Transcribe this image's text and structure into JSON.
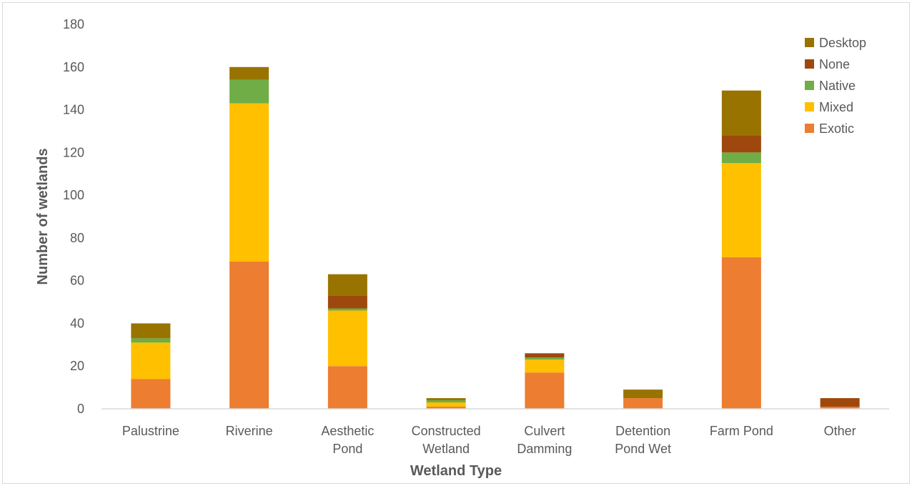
{
  "chart_data": {
    "type": "bar",
    "stacked": true,
    "title": "",
    "xlabel": "Wetland Type",
    "ylabel": "Number of wetlands",
    "ylim": [
      0,
      180
    ],
    "yticks": [
      0,
      20,
      40,
      60,
      80,
      100,
      120,
      140,
      160,
      180
    ],
    "grid": false,
    "legend": "top-right",
    "categories": [
      [
        "Palustrine"
      ],
      [
        "Riverine"
      ],
      [
        "Aesthetic",
        "Pond"
      ],
      [
        "Constructed",
        "Wetland"
      ],
      [
        "Culvert",
        "Damming"
      ],
      [
        "Detention",
        "Pond Wet"
      ],
      [
        "Farm Pond"
      ],
      [
        "Other"
      ]
    ],
    "series": [
      {
        "name": "Exotic",
        "color": "#ED7D31",
        "values": [
          14,
          69,
          20,
          1,
          17,
          5,
          71,
          1
        ]
      },
      {
        "name": "Mixed",
        "color": "#FFC000",
        "values": [
          17,
          74,
          26,
          2,
          6,
          0,
          44,
          0
        ]
      },
      {
        "name": "Native",
        "color": "#70AD47",
        "values": [
          2,
          11,
          1,
          1,
          1,
          0,
          5,
          0
        ]
      },
      {
        "name": "None",
        "color": "#9E480E",
        "values": [
          0,
          0,
          6,
          0,
          2,
          0,
          8,
          4
        ]
      },
      {
        "name": "Desktop",
        "color": "#997300",
        "values": [
          7,
          6,
          10,
          1,
          0,
          4,
          21,
          0
        ]
      }
    ]
  }
}
